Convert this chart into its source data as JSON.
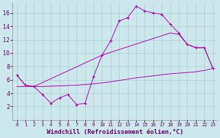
{
  "background_color": "#cce8ec",
  "grid_color": "#aacccc",
  "line_color": "#aa00aa",
  "xlim": [
    -0.5,
    23.5
  ],
  "ylim": [
    0,
    17.5
  ],
  "xticks": [
    0,
    1,
    2,
    3,
    4,
    5,
    6,
    7,
    8,
    9,
    10,
    11,
    12,
    13,
    14,
    15,
    16,
    17,
    18,
    19,
    20,
    21,
    22,
    23
  ],
  "yticks": [
    2,
    4,
    6,
    8,
    10,
    12,
    14,
    16
  ],
  "line1_x": [
    0,
    1,
    2,
    3,
    4,
    5,
    6,
    7,
    8,
    9,
    10,
    11,
    12,
    13,
    14,
    15,
    16,
    17,
    18,
    19,
    20,
    21,
    22,
    23
  ],
  "line1_y": [
    6.7,
    5.2,
    5.0,
    3.8,
    2.5,
    3.3,
    3.8,
    2.3,
    2.5,
    6.5,
    9.7,
    11.8,
    14.8,
    15.3,
    17.0,
    16.3,
    16.0,
    15.8,
    14.3,
    13.0,
    11.3,
    10.8,
    10.8,
    7.7
  ],
  "line2_x": [
    0,
    1,
    2,
    10,
    18,
    19,
    20,
    21,
    22,
    23
  ],
  "line2_y": [
    6.7,
    5.2,
    5.0,
    9.7,
    13.0,
    12.8,
    11.3,
    10.8,
    10.8,
    7.7
  ],
  "line3_x": [
    0,
    1,
    2,
    3,
    4,
    5,
    6,
    7,
    8,
    9,
    10,
    11,
    12,
    13,
    14,
    15,
    16,
    17,
    18,
    19,
    20,
    21,
    22,
    23
  ],
  "line3_y": [
    5.0,
    5.0,
    5.0,
    5.0,
    5.05,
    5.1,
    5.15,
    5.2,
    5.3,
    5.4,
    5.55,
    5.7,
    5.9,
    6.1,
    6.3,
    6.45,
    6.6,
    6.75,
    6.9,
    7.0,
    7.1,
    7.2,
    7.4,
    7.7
  ],
  "xlabel": "Windchill (Refroidissement éolien,°C)",
  "font_color": "#660066",
  "tick_color": "#660066"
}
